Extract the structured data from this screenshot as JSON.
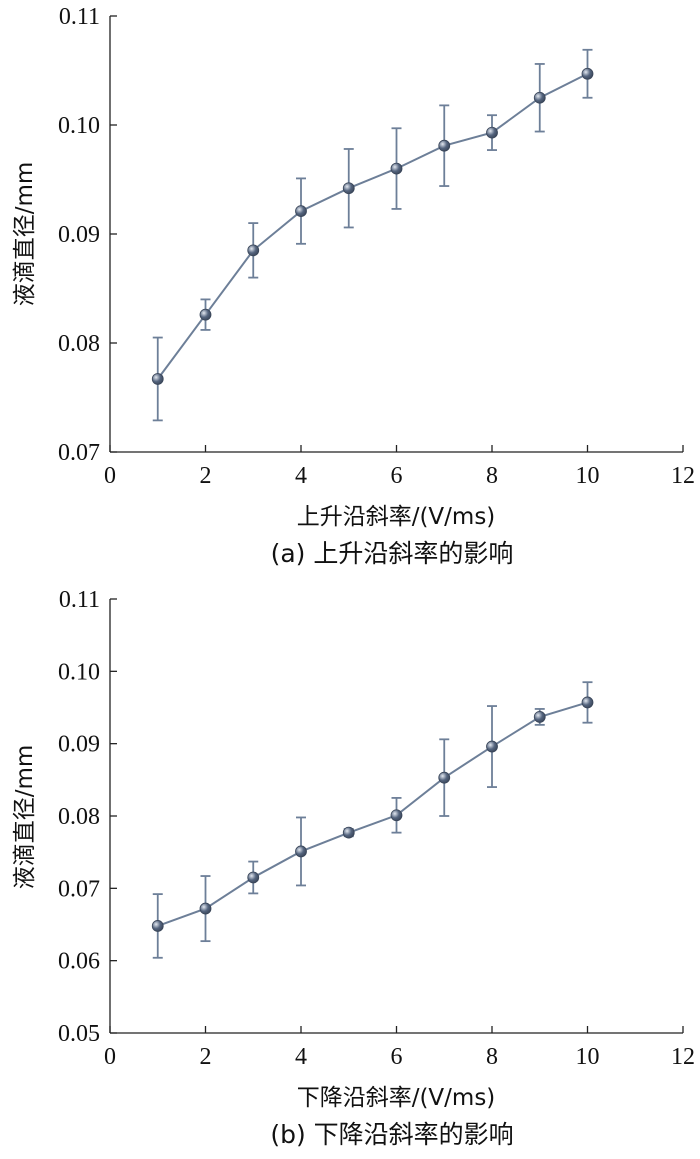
{
  "chart_data": [
    {
      "type": "line",
      "caption": "(a)  上升沿斜率的影响",
      "xlabel": "上升沿斜率/(V/ms)",
      "ylabel": "液滴直径/mm",
      "xlim": [
        0,
        12
      ],
      "ylim": [
        0.07,
        0.11
      ],
      "xticks": [
        0,
        2,
        4,
        6,
        8,
        10,
        12
      ],
      "xtick_labels": [
        "0",
        "2",
        "4",
        "6",
        "8",
        "10",
        "12"
      ],
      "yticks": [
        0.07,
        0.08,
        0.09,
        0.1,
        0.11
      ],
      "ytick_labels": [
        "0.07",
        "0.08",
        "0.09",
        "0.10",
        "0.11"
      ],
      "grid": false,
      "series": [
        {
          "color": "#6d7f98",
          "marker_color": "#55657f",
          "x": [
            1,
            2,
            3,
            4,
            5,
            6,
            7,
            8,
            9,
            10
          ],
          "y": [
            0.0767,
            0.0826,
            0.0885,
            0.0921,
            0.0942,
            0.096,
            0.0981,
            0.0993,
            0.1025,
            0.1047
          ],
          "err": [
            0.0038,
            0.0014,
            0.0025,
            0.003,
            0.0036,
            0.0037,
            0.0037,
            0.0016,
            0.0031,
            0.0022
          ]
        }
      ]
    },
    {
      "type": "line",
      "caption": "(b)  下降沿斜率的影响",
      "xlabel": "下降沿斜率/(V/ms)",
      "ylabel": "液滴直径/mm",
      "xlim": [
        0,
        12
      ],
      "ylim": [
        0.05,
        0.11
      ],
      "xticks": [
        0,
        2,
        4,
        6,
        8,
        10,
        12
      ],
      "xtick_labels": [
        "0",
        "2",
        "4",
        "6",
        "8",
        "10",
        "12"
      ],
      "yticks": [
        0.05,
        0.06,
        0.07,
        0.08,
        0.09,
        0.1,
        0.11
      ],
      "ytick_labels": [
        "0.05",
        "0.06",
        "0.07",
        "0.08",
        "0.09",
        "0.10",
        "0.11"
      ],
      "grid": false,
      "series": [
        {
          "color": "#6d7f98",
          "marker_color": "#55657f",
          "x": [
            1,
            2,
            3,
            4,
            5,
            6,
            7,
            8,
            9,
            10
          ],
          "y": [
            0.0648,
            0.0672,
            0.0715,
            0.0751,
            0.0777,
            0.0801,
            0.0853,
            0.0896,
            0.0937,
            0.0957
          ],
          "err": [
            0.0044,
            0.0045,
            0.0022,
            0.0047,
            0.0005,
            0.0024,
            0.0053,
            0.0056,
            0.0011,
            0.0028
          ]
        }
      ]
    }
  ]
}
